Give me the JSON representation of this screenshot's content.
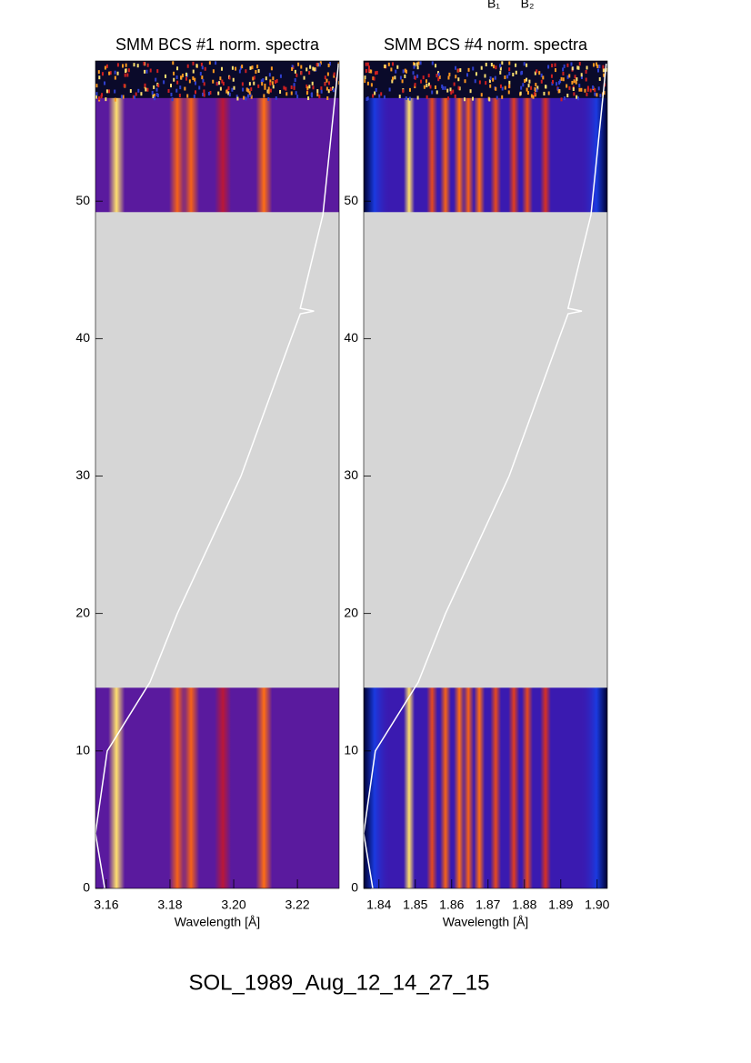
{
  "header": [
    "B₁",
    "B₂"
  ],
  "footer": "SOL_1989_Aug_12_14_27_15",
  "chart_data": [
    {
      "type": "spectrogram",
      "title": "SMM BCS #1 norm. spectra",
      "xlabel": "Wavelength [Å]",
      "xlim": [
        3.1566,
        3.2331
      ],
      "ylim": [
        0,
        60.2
      ],
      "xticks": [
        3.16,
        3.18,
        {
          "value": 3.2,
          "label": "3.20"
        },
        3.22
      ],
      "yticks": [
        0,
        10,
        20,
        30,
        40,
        50
      ],
      "background": "#5a1a9e",
      "gap": [
        14.6,
        49.2
      ],
      "noise_start": 57.5,
      "lines": {
        "centers": [
          3.1632,
          3.1823,
          3.1866,
          3.1966,
          3.2095
        ],
        "intensities": [
          1.0,
          0.7,
          0.7,
          0.35,
          0.75
        ]
      },
      "light_curve": {
        "x": [
          3.1595,
          3.1566,
          3.1603,
          3.1737,
          3.1823,
          3.2023,
          3.218,
          3.2209,
          3.2252,
          3.2209,
          3.228,
          3.2329
        ],
        "y": [
          0,
          4,
          10,
          15,
          20,
          30,
          40,
          41.8,
          42,
          42.2,
          49,
          60
        ]
      }
    },
    {
      "type": "spectrogram",
      "title": "SMM BCS #4 norm. spectra",
      "xlabel": "Wavelength [Å]",
      "xlim": [
        1.8358,
        1.9028
      ],
      "ylim": [
        0,
        60.2
      ],
      "xticks": [
        1.84,
        1.85,
        1.86,
        1.87,
        1.88,
        1.89,
        {
          "value": 1.9,
          "label": "1.90"
        }
      ],
      "yticks": [
        0,
        10,
        20,
        30,
        40,
        50
      ],
      "background": "#3a1ab0",
      "gap": [
        14.6,
        49.2
      ],
      "noise_start": 57.5,
      "lines": {
        "centers": [
          1.8483,
          1.8546,
          1.8583,
          1.8621,
          1.8646,
          1.8676,
          1.8721,
          1.8771,
          1.8808,
          1.8858
        ],
        "intensities": [
          1.0,
          0.6,
          0.7,
          0.75,
          0.7,
          0.75,
          0.6,
          0.55,
          0.6,
          0.5
        ]
      },
      "light_curve": {
        "x": [
          1.8383,
          1.8358,
          1.839,
          1.8508,
          1.8583,
          1.8758,
          1.8895,
          1.892,
          1.8958,
          1.892,
          1.8983,
          1.9025
        ],
        "y": [
          0,
          4,
          10,
          15,
          20,
          30,
          40,
          41.8,
          42,
          42.2,
          49,
          60
        ]
      }
    }
  ]
}
